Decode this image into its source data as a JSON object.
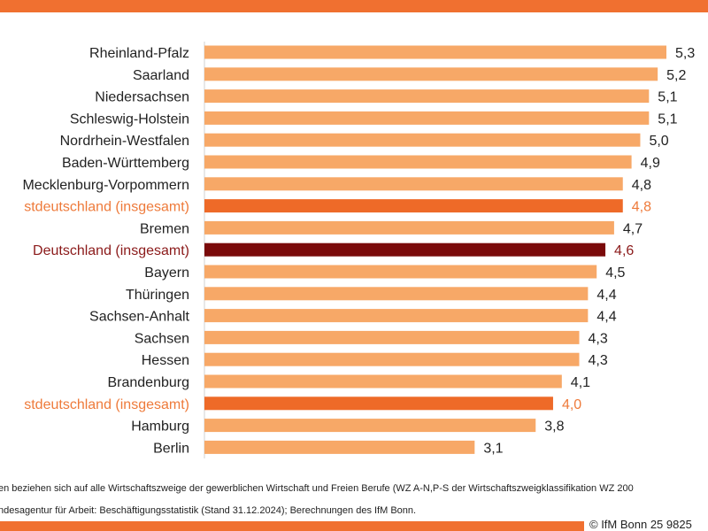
{
  "chart_data": {
    "type": "bar",
    "orientation": "horizontal",
    "categories": [
      "Rheinland-Pfalz",
      "Saarland",
      "Niedersachsen",
      "Schleswig-Holstein",
      "Nordrhein-Westfalen",
      "Baden-Württemberg",
      "Mecklenburg-Vorpommern",
      "stdeutschland (insgesamt)",
      "Bremen",
      "Deutschland (insgesamt)",
      "Bayern",
      "Thüringen",
      "Sachsen-Anhalt",
      "Sachsen",
      "Hessen",
      "Brandenburg",
      "stdeutschland (insgesamt)",
      "Hamburg",
      "Berlin"
    ],
    "values": [
      5.3,
      5.2,
      5.1,
      5.1,
      5.0,
      4.9,
      4.8,
      4.8,
      4.7,
      4.6,
      4.5,
      4.4,
      4.4,
      4.3,
      4.3,
      4.1,
      4.0,
      3.8,
      3.1
    ],
    "value_labels": [
      "5,3",
      "5,2",
      "5,1",
      "5,1",
      "5,0",
      "4,9",
      "4,8",
      "4,8",
      "4,7",
      "4,6",
      "4,5",
      "4,4",
      "4,4",
      "4,3",
      "4,3",
      "4,1",
      "4,0",
      "3,8",
      "3,1"
    ],
    "highlight": [
      "normal",
      "normal",
      "normal",
      "normal",
      "normal",
      "normal",
      "normal",
      "region",
      "normal",
      "national",
      "normal",
      "normal",
      "normal",
      "normal",
      "normal",
      "normal",
      "region",
      "normal",
      "normal"
    ],
    "xlim": [
      0,
      5.3
    ],
    "grid": false,
    "colors": {
      "normal_bar": "#f7a867",
      "region_bar": "#ee6a28",
      "national_bar": "#7a0a0a",
      "normal_text": "#222222",
      "region_text": "#ee7a3a",
      "national_text": "#8b1a1a"
    }
  },
  "footnote": {
    "line1": "en beziehen sich auf alle Wirtschaftszweige der gewerblichen Wirtschaft und Freien Berufe (WZ A-N,P-S der Wirtschaftszweigklassifikation WZ 200",
    "line2": "ndesagentur für Arbeit: Beschäftigungsstatistik (Stand 31.12.2024); Berechnungen des IfM Bonn.",
    "copyright": "© IfM Bonn 25 9825"
  },
  "theme": {
    "band_color": "#f07030"
  }
}
